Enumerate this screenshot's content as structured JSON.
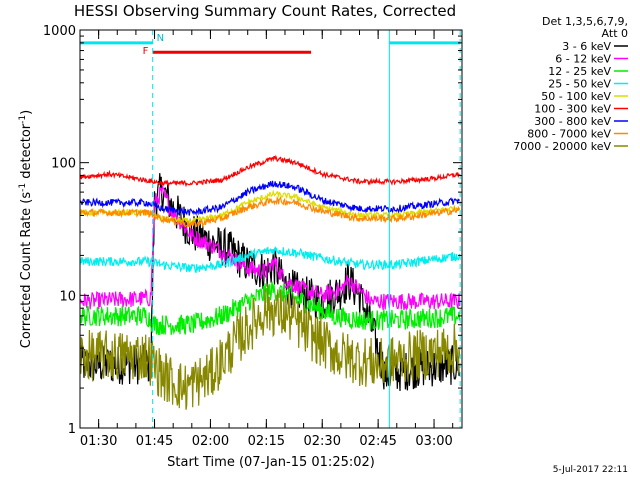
{
  "chart_data": {
    "type": "line",
    "title": "HESSI Observing Summary Count Rates, Corrected",
    "ylabel": "Corrected Count Rate (s",
    "ylabel_sup": "-1",
    "ylabel_mid": " detector",
    "ylabel_sup2": "-1",
    "ylabel_end": ")",
    "xlabel": "Start Time (07-Jan-15 01:25:02)",
    "footer": "5-Jul-2017 22:11",
    "y_scale": "log",
    "ylim": [
      1,
      1000
    ],
    "xlim_minutes": [
      0,
      102.5
    ],
    "y_ticks": [
      {
        "v": 1,
        "label": "1"
      },
      {
        "v": 10,
        "label": "10"
      },
      {
        "v": 100,
        "label": "100"
      },
      {
        "v": 1000,
        "label": "1000"
      }
    ],
    "x_ticks": [
      {
        "t": 5,
        "label": "01:30"
      },
      {
        "t": 20,
        "label": "01:45"
      },
      {
        "t": 35,
        "label": "02:00"
      },
      {
        "t": 50,
        "label": "02:15"
      },
      {
        "t": 65,
        "label": "02:30"
      },
      {
        "t": 80,
        "label": "02:45"
      },
      {
        "t": 95,
        "label": "03:00"
      }
    ],
    "legend_header": [
      "Det 1,3,5,6,7,9,",
      "Att 0"
    ],
    "series": [
      {
        "name": "3 - 6 keV",
        "color": "#000000"
      },
      {
        "name": "6 - 12 keV",
        "color": "#ff00ff"
      },
      {
        "name": "12 - 25 keV",
        "color": "#00ee00"
      },
      {
        "name": "25 - 50 keV",
        "color": "#00eeee"
      },
      {
        "name": "50 - 100 keV",
        "color": "#dddd00"
      },
      {
        "name": "100 - 300 keV",
        "color": "#ff0000"
      },
      {
        "name": "300 - 800 keV",
        "color": "#0000ff"
      },
      {
        "name": "800 - 7000 keV",
        "color": "#ff8800"
      },
      {
        "name": "7000 - 20000 keV",
        "color": "#888800"
      }
    ],
    "flags": {
      "N_label": "N",
      "F_label": "F",
      "N_intervals_minutes": [
        [
          0,
          19.5
        ],
        [
          83,
          102
        ]
      ],
      "F_interval_minutes": [
        19.5,
        62
      ],
      "N_level": 800,
      "F_level": 680
    },
    "boundaries_minutes": {
      "solid": [
        0,
        83
      ],
      "dashed": [
        19.5,
        102
      ]
    }
  }
}
